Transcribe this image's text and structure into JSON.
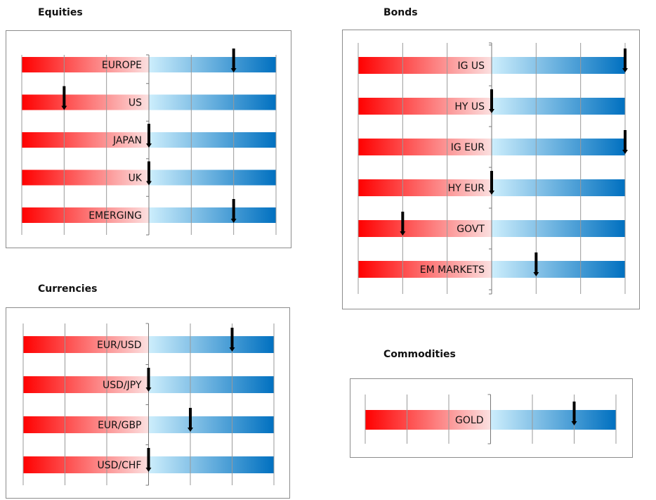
{
  "chart_data": [
    {
      "type": "bar",
      "title": "Equities",
      "scale": [
        -3,
        3
      ],
      "categories": [
        "EUROPE",
        "US",
        "JAPAN",
        "UK",
        "EMERGING"
      ],
      "values": [
        2,
        -2,
        0,
        0,
        2
      ]
    },
    {
      "type": "bar",
      "title": "Bonds",
      "scale": [
        -3,
        3
      ],
      "categories": [
        "IG US",
        "HY US",
        "IG EUR",
        "HY EUR",
        "GOVT",
        "EM MARKETS"
      ],
      "values": [
        3,
        0,
        3,
        0,
        -2,
        1
      ]
    },
    {
      "type": "bar",
      "title": "Currencies",
      "scale": [
        -3,
        3
      ],
      "categories": [
        "EUR/USD",
        "USD/JPY",
        "EUR/GBP",
        "USD/CHF"
      ],
      "values": [
        2,
        0,
        1,
        0
      ]
    },
    {
      "type": "bar",
      "title": "Commodities",
      "scale": [
        -3,
        3
      ],
      "categories": [
        "GOLD"
      ],
      "values": [
        2
      ]
    }
  ],
  "colors": {
    "negative_start": "#ff0000",
    "negative_end": "#fbe0e0",
    "positive_start": "#cdeefc",
    "positive_end": "#0070c0",
    "marker": "#000000",
    "gridline": "#999999"
  }
}
